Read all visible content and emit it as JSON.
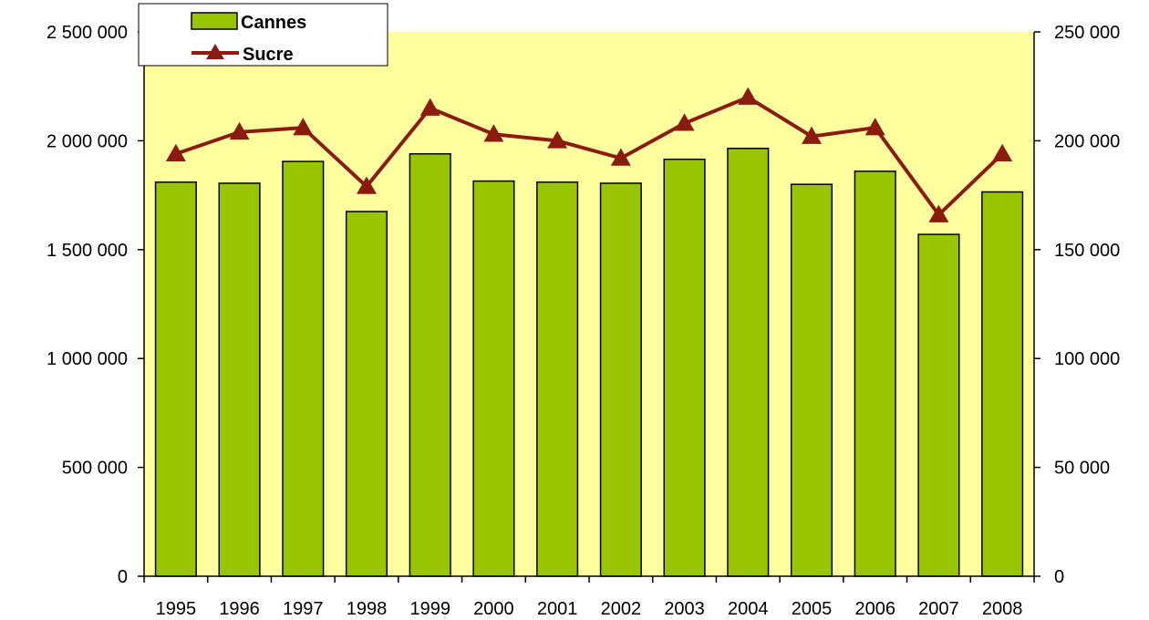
{
  "colors": {
    "plot_background": "#ffffa0",
    "bar_fill": "#99c400",
    "line_color": "#8b1a0f",
    "axis_color": "#000000"
  },
  "chart_data": {
    "type": "bar",
    "categories": [
      "1995",
      "1996",
      "1997",
      "1998",
      "1999",
      "2000",
      "2001",
      "2002",
      "2003",
      "2004",
      "2005",
      "2006",
      "2007",
      "2008"
    ],
    "series": [
      {
        "name": "Cannes",
        "type": "bar",
        "axis": "left",
        "values": [
          1810000,
          1805000,
          1905000,
          1675000,
          1940000,
          1815000,
          1810000,
          1805000,
          1915000,
          1965000,
          1800000,
          1860000,
          1570000,
          1765000
        ]
      },
      {
        "name": "Sucre",
        "type": "line",
        "axis": "right",
        "marker": "triangle",
        "values": [
          194000,
          204000,
          206000,
          179000,
          215000,
          203000,
          200000,
          192000,
          208000,
          220000,
          202000,
          206000,
          166000,
          194000
        ]
      }
    ],
    "ylim_left": [
      0,
      2500000
    ],
    "ylim_right": [
      0,
      250000
    ],
    "left_ticks": [
      "0",
      "500 000",
      "1 000 000",
      "1 500 000",
      "2 000 000",
      "2 500 000"
    ],
    "right_ticks": [
      "0",
      "50 000",
      "100 000",
      "150 000",
      "200 000",
      "250 000"
    ],
    "grid": false,
    "legend_position": "top-left"
  }
}
